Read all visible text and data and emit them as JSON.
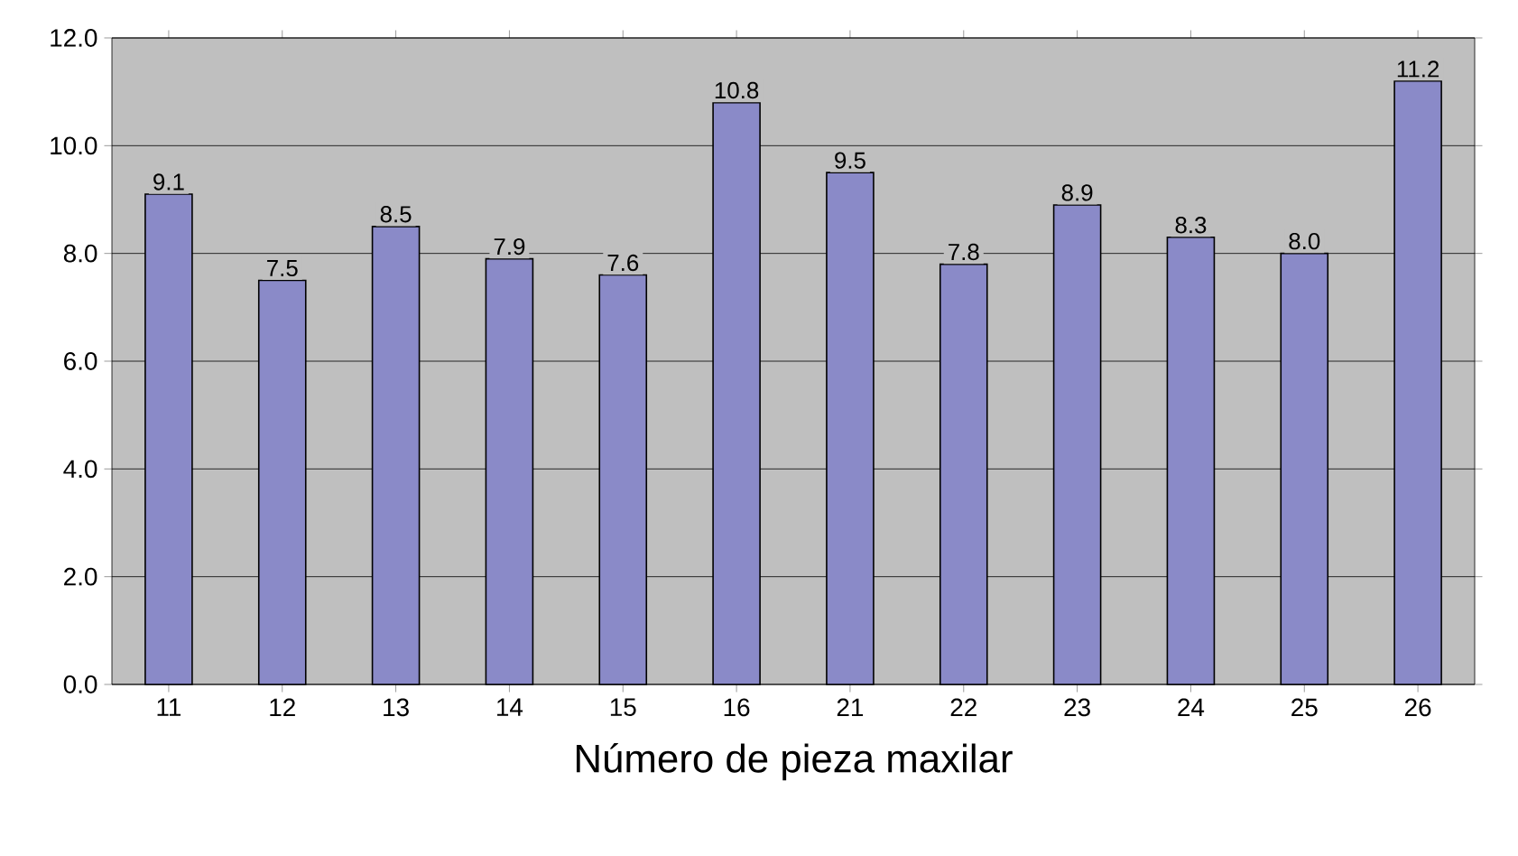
{
  "chart_data": {
    "type": "bar",
    "xlabel": "Número de pieza maxilar",
    "categories": [
      "11",
      "12",
      "13",
      "14",
      "15",
      "16",
      "21",
      "22",
      "23",
      "24",
      "25",
      "26"
    ],
    "values": [
      9.1,
      7.5,
      8.5,
      7.9,
      7.6,
      10.8,
      9.5,
      7.8,
      8.9,
      8.3,
      8.0,
      11.2
    ],
    "value_labels": [
      "9.1",
      "7.5",
      "8.5",
      "7.9",
      "7.6",
      "10.8",
      "9.5",
      "7.8",
      "8.9",
      "8.3",
      "8.0",
      "11.2"
    ],
    "color": "#8a8ac8",
    "ylim": [
      0,
      12
    ],
    "yticks": [
      {
        "value": 0,
        "label": "0.0"
      },
      {
        "value": 2,
        "label": "2.0"
      },
      {
        "value": 4,
        "label": "4.0"
      },
      {
        "value": 6,
        "label": "6.0"
      },
      {
        "value": 8,
        "label": "8.0"
      },
      {
        "value": 10,
        "label": "10.0"
      },
      {
        "value": 12,
        "label": "12.0"
      }
    ],
    "grid": "y"
  }
}
